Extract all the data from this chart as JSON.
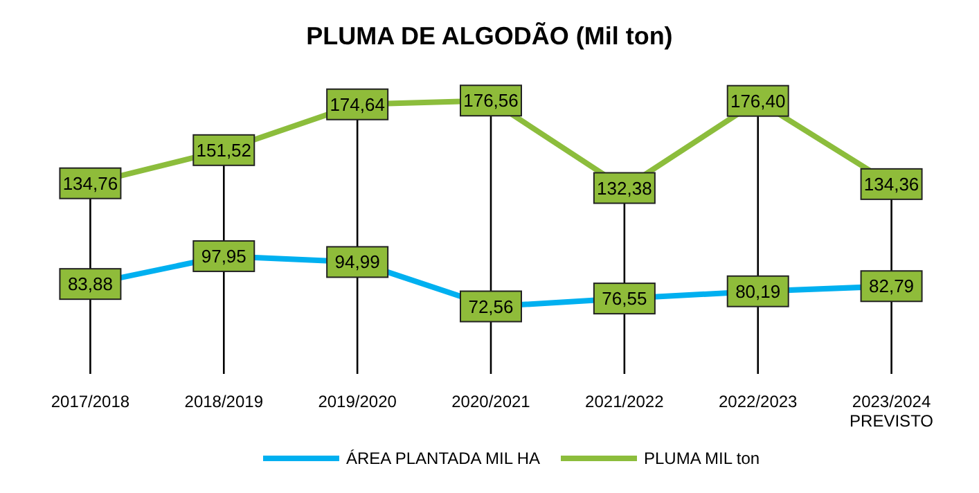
{
  "chart_data": {
    "type": "line",
    "title": "PLUMA DE ALGODÃO (Mil ton)",
    "categories": [
      "2017/2018",
      "2018/2019",
      "2019/2020",
      "2020/2021",
      "2021/2022",
      "2022/2023",
      "2023/2024\nPREVISTO"
    ],
    "series": [
      {
        "name": "ÁREA PLANTADA MIL HA",
        "color": "#00b0f0",
        "values": [
          83.88,
          97.95,
          94.99,
          72.56,
          76.55,
          80.19,
          82.79
        ],
        "value_labels": [
          "83,88",
          "97,95",
          "94,99",
          "72,56",
          "76,55",
          "80,19",
          "82,79"
        ]
      },
      {
        "name": "PLUMA MIL ton",
        "color": "#8cbd3c",
        "values": [
          134.76,
          151.52,
          174.64,
          176.56,
          132.38,
          176.4,
          134.36
        ],
        "value_labels": [
          "134,76",
          "151,52",
          "174,64",
          "176,56",
          "132,38",
          "176,40",
          "134,36"
        ]
      }
    ],
    "grid": "x",
    "legend": "bottom",
    "marker": "square",
    "line_style": "solid"
  }
}
